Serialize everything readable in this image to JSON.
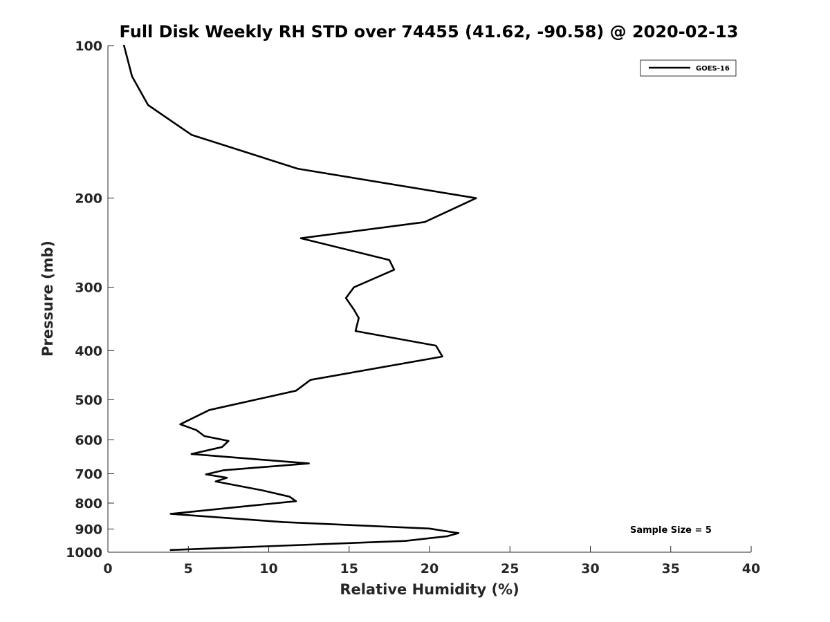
{
  "chart_data": {
    "type": "line",
    "title": "Full Disk Weekly RH STD over 74455 (41.62, -90.58) @ 2020-02-13",
    "xlabel": "Relative Humidity (%)",
    "ylabel": "Pressure (mb)",
    "xlim": [
      0,
      40
    ],
    "ylim": [
      100,
      1000
    ],
    "y_scale": "log",
    "y_reversed": true,
    "x_ticks": [
      "0",
      "5",
      "10",
      "15",
      "20",
      "25",
      "30",
      "35",
      "40"
    ],
    "y_ticks": [
      "100",
      "200",
      "300",
      "400",
      "500",
      "600",
      "700",
      "800",
      "900",
      "1000"
    ],
    "grid": false,
    "legend_position": "top-right",
    "series": [
      {
        "name": "GOES-16",
        "color": "#000000",
        "points": [
          [
            1.0,
            100
          ],
          [
            1.5,
            115
          ],
          [
            2.5,
            131
          ],
          [
            5.2,
            150
          ],
          [
            11.8,
            175
          ],
          [
            22.9,
            200
          ],
          [
            19.7,
            223
          ],
          [
            12.0,
            240
          ],
          [
            17.5,
            265
          ],
          [
            17.8,
            277
          ],
          [
            15.3,
            300
          ],
          [
            14.8,
            315
          ],
          [
            15.3,
            332
          ],
          [
            15.6,
            345
          ],
          [
            15.4,
            366
          ],
          [
            20.4,
            391
          ],
          [
            20.8,
            411
          ],
          [
            12.6,
            457
          ],
          [
            11.7,
            480
          ],
          [
            6.3,
            524
          ],
          [
            4.5,
            559
          ],
          [
            5.5,
            574
          ],
          [
            6.0,
            590
          ],
          [
            7.5,
            603
          ],
          [
            7.1,
            620
          ],
          [
            5.2,
            640
          ],
          [
            12.5,
            668
          ],
          [
            7.2,
            689
          ],
          [
            6.1,
            702
          ],
          [
            7.4,
            713
          ],
          [
            6.7,
            725
          ],
          [
            9.6,
            755
          ],
          [
            11.3,
            777
          ],
          [
            11.7,
            793
          ],
          [
            8.8,
            810
          ],
          [
            3.9,
            840
          ],
          [
            10.9,
            872
          ],
          [
            20.0,
            898
          ],
          [
            21.8,
            917
          ],
          [
            21.1,
            930
          ],
          [
            18.5,
            950
          ],
          [
            3.9,
            990
          ]
        ]
      }
    ],
    "annotations": [
      "Sample Size = 5"
    ]
  }
}
